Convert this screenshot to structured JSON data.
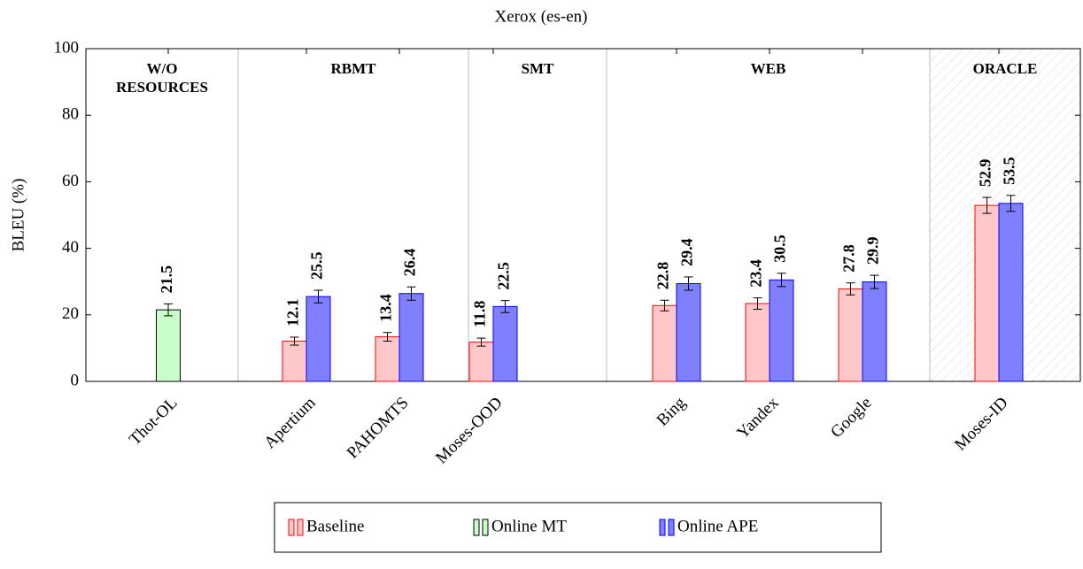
{
  "chart_data": {
    "type": "bar",
    "title": "Xerox (es-en)",
    "ylabel": "BLEU (%)",
    "categories": [
      "Thot-OL",
      "Apertium",
      "PAHOMTS",
      "Moses-OOD",
      "Bing",
      "Yandex",
      "Google",
      "Moses-ID"
    ],
    "groups": [
      {
        "label": [
          "W/O",
          "RESOURCES"
        ]
      },
      {
        "label": [
          "RBMT"
        ]
      },
      {
        "label": [
          "SMT"
        ]
      },
      {
        "label": [
          "WEB"
        ]
      },
      {
        "label": [
          "ORACLE"
        ],
        "hatched": true
      }
    ],
    "series": [
      {
        "name": "Baseline",
        "color": "#ffc8c8",
        "edge": "#ff0000",
        "label_color": "#ff0000",
        "values": [
          null,
          12.1,
          13.4,
          11.8,
          22.8,
          23.4,
          27.8,
          52.9
        ],
        "errors": [
          null,
          1.2,
          1.3,
          1.2,
          1.6,
          1.7,
          1.8,
          2.4
        ]
      },
      {
        "name": "Online MT",
        "color": "#c8ffc8",
        "edge": "#000000",
        "label_color": "#000000",
        "values": [
          21.5,
          null,
          null,
          null,
          null,
          null,
          null,
          null
        ],
        "errors": [
          1.8,
          null,
          null,
          null,
          null,
          null,
          null,
          null
        ]
      },
      {
        "name": "Online APE",
        "color": "#8080ff",
        "edge": "#0000ff",
        "label_color": "#0000ff",
        "values": [
          null,
          25.5,
          26.4,
          22.5,
          29.4,
          30.5,
          29.9,
          53.5
        ],
        "errors": [
          null,
          1.9,
          2.0,
          1.8,
          2.0,
          2.0,
          2.0,
          2.4
        ]
      }
    ],
    "ylim": [
      0,
      100
    ],
    "yticks": [
      0,
      20,
      40,
      60,
      80,
      100
    ]
  }
}
